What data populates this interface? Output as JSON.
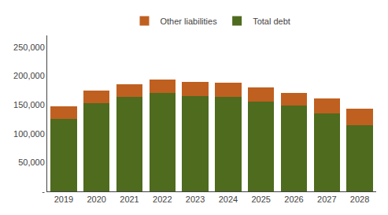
{
  "chart_data": {
    "type": "bar",
    "stacked": true,
    "categories": [
      "2019",
      "2020",
      "2021",
      "2022",
      "2023",
      "2024",
      "2025",
      "2026",
      "2027",
      "2028"
    ],
    "series": [
      {
        "name": "Total debt",
        "color": "#4e6b1e",
        "values": [
          125000,
          153000,
          163000,
          170000,
          165000,
          163000,
          155000,
          148000,
          135000,
          115000
        ]
      },
      {
        "name": "Other liabilities",
        "color": "#bf6020",
        "values": [
          22000,
          22000,
          22000,
          24000,
          25000,
          25000,
          25000,
          23000,
          26000,
          28000
        ]
      }
    ],
    "ylim": [
      0,
      270000
    ],
    "yticks": [
      {
        "value": 0,
        "label": "-"
      },
      {
        "value": 50000,
        "label": "50,000"
      },
      {
        "value": 100000,
        "label": "100,000"
      },
      {
        "value": 150000,
        "label": "150,000"
      },
      {
        "value": 200000,
        "label": "200,000"
      },
      {
        "value": 250000,
        "label": "250,000"
      }
    ],
    "grid": false,
    "legend": "top"
  }
}
